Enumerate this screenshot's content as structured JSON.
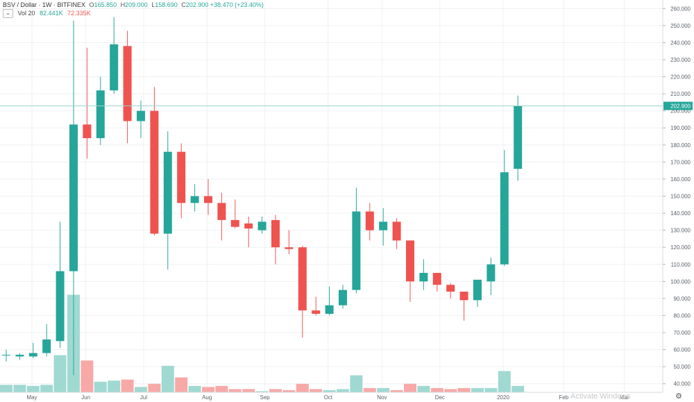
{
  "header": {
    "symbol": "BSV / Dollar · 1W · BITFINEX",
    "open_label": "O",
    "open": "165.850",
    "high_label": "H",
    "high": "209.000",
    "low_label": "L",
    "low": "158.690",
    "close_label": "C",
    "close": "202.900",
    "change": "+38.470 (+23.40%)"
  },
  "volume_legend": {
    "label": "Vol 20",
    "volume": "82.441K",
    "ma": "72.335K",
    "toggle_icon": "chevron-down-icon"
  },
  "watermark": "Activate Windows",
  "settings_icon": "gear-icon",
  "colors": {
    "up": "#26a69a",
    "down": "#ef5350",
    "up_volume": "#9fd9d2",
    "down_volume": "#f7a9a7",
    "grid": "#eef0f3",
    "last_price": "#26a69a"
  },
  "chart_data": {
    "type": "candlestick",
    "title": "BSV / Dollar · 1W · BITFINEX",
    "ylim": [
      35,
      265
    ],
    "y_ticks": [
      "40.000",
      "50.000",
      "60.000",
      "70.000",
      "80.000",
      "90.000",
      "100.000",
      "110.000",
      "120.000",
      "130.000",
      "140.000",
      "150.000",
      "160.000",
      "170.000",
      "180.000",
      "190.000",
      "200.000",
      "210.000",
      "220.000",
      "230.000",
      "240.000",
      "250.000",
      "260.000"
    ],
    "x_labels": [
      "May",
      "Jun",
      "Jul",
      "Aug",
      "Sep",
      "Oct",
      "Nov",
      "Dec",
      "2020",
      "Feb",
      "Mar"
    ],
    "last_price": "202.900",
    "grid": true,
    "candles": [
      {
        "o": 57,
        "h": 60,
        "l": 53,
        "c": 57
      },
      {
        "o": 56,
        "h": 58,
        "l": 54,
        "c": 57
      },
      {
        "o": 56,
        "h": 64,
        "l": 55,
        "c": 58
      },
      {
        "o": 58,
        "h": 75,
        "l": 56,
        "c": 66
      },
      {
        "o": 65,
        "h": 135,
        "l": 61,
        "c": 106
      },
      {
        "o": 106,
        "h": 253,
        "l": 45,
        "c": 192
      },
      {
        "o": 192,
        "h": 237,
        "l": 172,
        "c": 184
      },
      {
        "o": 184,
        "h": 220,
        "l": 180,
        "c": 212
      },
      {
        "o": 212,
        "h": 255,
        "l": 210,
        "c": 239
      },
      {
        "o": 238,
        "h": 247,
        "l": 181,
        "c": 194
      },
      {
        "o": 194,
        "h": 206,
        "l": 184,
        "c": 200
      },
      {
        "o": 200,
        "h": 214,
        "l": 127,
        "c": 128
      },
      {
        "o": 128,
        "h": 188,
        "l": 107,
        "c": 176
      },
      {
        "o": 176,
        "h": 181,
        "l": 137,
        "c": 146
      },
      {
        "o": 146,
        "h": 157,
        "l": 141,
        "c": 150
      },
      {
        "o": 150,
        "h": 160,
        "l": 139,
        "c": 146
      },
      {
        "o": 146,
        "h": 152,
        "l": 124,
        "c": 136
      },
      {
        "o": 136,
        "h": 148,
        "l": 131,
        "c": 132
      },
      {
        "o": 134,
        "h": 138,
        "l": 120,
        "c": 131
      },
      {
        "o": 130,
        "h": 138,
        "l": 128,
        "c": 135
      },
      {
        "o": 136,
        "h": 139,
        "l": 110,
        "c": 120
      },
      {
        "o": 120,
        "h": 130,
        "l": 116,
        "c": 119
      },
      {
        "o": 120,
        "h": 121,
        "l": 67,
        "c": 83
      },
      {
        "o": 83,
        "h": 91,
        "l": 80,
        "c": 81
      },
      {
        "o": 81,
        "h": 97,
        "l": 80,
        "c": 86
      },
      {
        "o": 86,
        "h": 98,
        "l": 84,
        "c": 95
      },
      {
        "o": 95,
        "h": 155,
        "l": 93,
        "c": 141
      },
      {
        "o": 141,
        "h": 146,
        "l": 124,
        "c": 130
      },
      {
        "o": 130,
        "h": 143,
        "l": 121,
        "c": 135
      },
      {
        "o": 135,
        "h": 137,
        "l": 119,
        "c": 124
      },
      {
        "o": 124,
        "h": 124,
        "l": 88,
        "c": 100
      },
      {
        "o": 100,
        "h": 113,
        "l": 95,
        "c": 105
      },
      {
        "o": 105,
        "h": 105,
        "l": 94,
        "c": 98
      },
      {
        "o": 98,
        "h": 99,
        "l": 90,
        "c": 94
      },
      {
        "o": 94,
        "h": 94,
        "l": 77,
        "c": 89
      },
      {
        "o": 89,
        "h": 101,
        "l": 85,
        "c": 101
      },
      {
        "o": 100,
        "h": 114,
        "l": 92,
        "c": 110
      },
      {
        "o": 110,
        "h": 177,
        "l": 109,
        "c": 164
      },
      {
        "o": 166,
        "h": 209,
        "l": 159,
        "c": 203
      }
    ],
    "volume_ylim": [
      0,
      95
    ],
    "volume": [
      7,
      7,
      6,
      7,
      35,
      92,
      30,
      10,
      11,
      12,
      5,
      8,
      25,
      14,
      6,
      5,
      6,
      3,
      3,
      1,
      3,
      2,
      8,
      3,
      2,
      3,
      16,
      4,
      4,
      2,
      8,
      6,
      4,
      3,
      4,
      4,
      4,
      20,
      6
    ]
  }
}
